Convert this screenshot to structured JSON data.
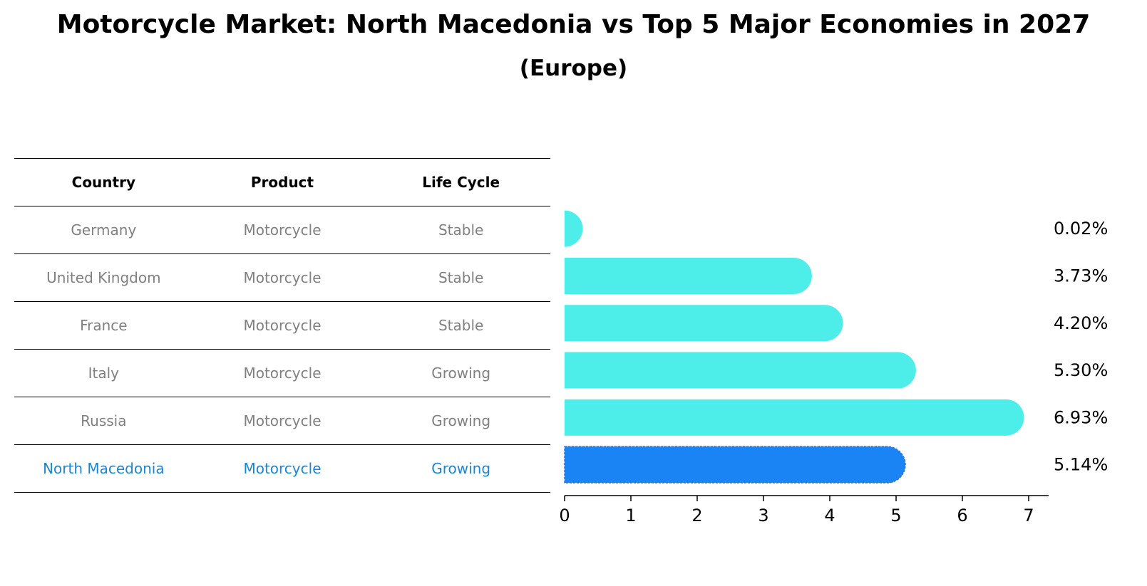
{
  "title": "Motorcycle Market: North Macedonia vs Top 5 Major Economies in 2027",
  "subtitle": "(Europe)",
  "table": {
    "headers": [
      "Country",
      "Product",
      "Life Cycle"
    ],
    "rows": [
      {
        "country": "Germany",
        "product": "Motorcycle",
        "life_cycle": "Stable"
      },
      {
        "country": "United Kingdom",
        "product": "Motorcycle",
        "life_cycle": "Stable"
      },
      {
        "country": "France",
        "product": "Motorcycle",
        "life_cycle": "Stable"
      },
      {
        "country": "Italy",
        "product": "Motorcycle",
        "life_cycle": "Growing"
      },
      {
        "country": "Russia",
        "product": "Motorcycle",
        "life_cycle": "Growing"
      },
      {
        "country": "North Macedonia",
        "product": "Motorcycle",
        "life_cycle": "Growing"
      }
    ]
  },
  "colors": {
    "bar": "#4deeea",
    "highlight_bar": "#1a84f5",
    "highlight_text": "#1a86d6",
    "muted_text": "#808080"
  },
  "chart_data": {
    "type": "bar",
    "orientation": "horizontal",
    "categories": [
      "Germany",
      "United Kingdom",
      "France",
      "Italy",
      "Russia",
      "North Macedonia"
    ],
    "values": [
      0.02,
      3.73,
      4.2,
      5.3,
      6.93,
      5.14
    ],
    "value_labels": [
      "0.02%",
      "3.73%",
      "4.20%",
      "5.30%",
      "6.93%",
      "5.14%"
    ],
    "highlight_index": 5,
    "xlim": [
      0,
      7.3
    ],
    "xticks": [
      0,
      1,
      2,
      3,
      4,
      5,
      6,
      7
    ],
    "grid": false
  }
}
